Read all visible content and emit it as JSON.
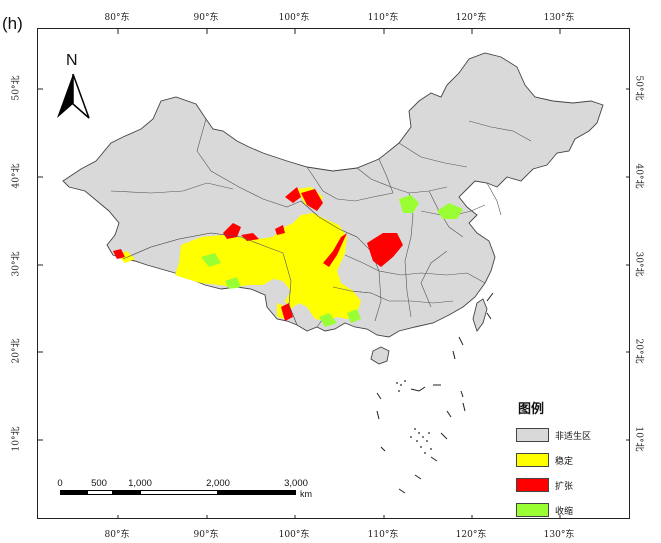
{
  "panel_label": "(h)",
  "axes": {
    "top_ticks": [
      "80°东",
      "90°东",
      "100°东",
      "110°东",
      "120°东",
      "130°东"
    ],
    "bottom_ticks": [
      "80°东",
      "90°东",
      "100°东",
      "110°东",
      "120°东",
      "130°东"
    ],
    "left_ticks": [
      "50°北",
      "40°北",
      "30°北",
      "20°北",
      "10°北"
    ],
    "right_ticks": [
      "50°北",
      "40°北",
      "30°北",
      "20°北",
      "10°北"
    ]
  },
  "north_arrow": {
    "letter": "N",
    "icon": "north-arrow-icon"
  },
  "legend": {
    "title": "图例",
    "items": [
      {
        "label": "非适生区",
        "color": "#d9d9d9"
      },
      {
        "label": "稳定",
        "color": "#ffff00"
      },
      {
        "label": "扩张",
        "color": "#ff0000"
      },
      {
        "label": "收缩",
        "color": "#99ff33"
      }
    ]
  },
  "scalebar": {
    "labels": [
      "0",
      "500",
      "1,000",
      "2,000",
      "3,000"
    ],
    "unit": "km"
  },
  "colors": {
    "land": "#d9d9d9",
    "stable": "#ffff00",
    "expansion": "#ff0000",
    "contraction": "#99ff33",
    "border": "#555555"
  }
}
